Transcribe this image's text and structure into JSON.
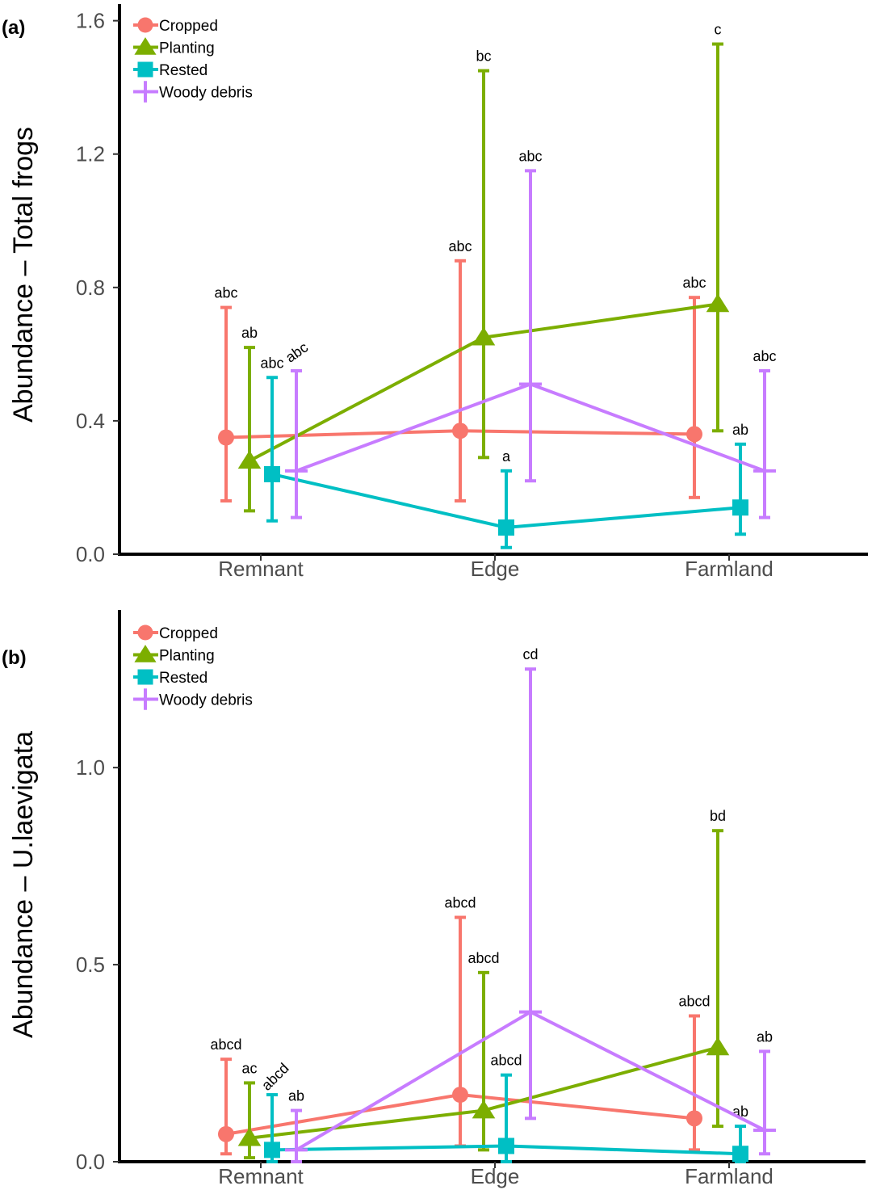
{
  "colors": {
    "Cropped": "#F8766D",
    "Planting": "#7CAE00",
    "Rested": "#00BFC4",
    "Woody debris": "#C77CFF",
    "axis": "#000000",
    "tick": "#4d4d4d"
  },
  "chart_data": [
    {
      "type": "line",
      "panel": "(a)",
      "ylabel": "Abundance – Total frogs",
      "xlabel": "",
      "categories": [
        "Remnant",
        "Edge",
        "Farmland"
      ],
      "ylim": [
        0,
        1.65
      ],
      "yticks": [
        0.0,
        0.4,
        0.8,
        1.2,
        1.6
      ],
      "ytick_labels": [
        "0.0",
        "0.4",
        "0.8",
        "1.2",
        "1.6"
      ],
      "legend": [
        "Cropped",
        "Planting",
        "Rested",
        "Woody debris"
      ],
      "legend_position": "top-left",
      "series": [
        {
          "name": "Cropped",
          "marker": "circle",
          "values": [
            0.35,
            0.37,
            0.36
          ],
          "lower": [
            0.16,
            0.16,
            0.17
          ],
          "upper": [
            0.74,
            0.88,
            0.77
          ],
          "labels": [
            "abc",
            "abc",
            "abc"
          ]
        },
        {
          "name": "Planting",
          "marker": "triangle",
          "values": [
            0.28,
            0.65,
            0.75
          ],
          "lower": [
            0.13,
            0.29,
            0.37
          ],
          "upper": [
            0.62,
            1.45,
            1.53
          ],
          "labels": [
            "ab",
            "bc",
            "c"
          ]
        },
        {
          "name": "Rested",
          "marker": "square",
          "values": [
            0.24,
            0.08,
            0.14
          ],
          "lower": [
            0.1,
            0.02,
            0.06
          ],
          "upper": [
            0.53,
            0.25,
            0.33
          ],
          "labels": [
            "abc",
            "a",
            "ab"
          ]
        },
        {
          "name": "Woody debris",
          "marker": "cross",
          "values": [
            0.25,
            0.51,
            0.25
          ],
          "lower": [
            0.11,
            0.22,
            0.11
          ],
          "upper": [
            0.55,
            1.15,
            0.55
          ],
          "labels": [
            "abc",
            "abc",
            "abc"
          ]
        }
      ]
    },
    {
      "type": "line",
      "panel": "(b)",
      "ylabel": "Abundance – U.laevigata",
      "xlabel": "",
      "categories": [
        "Remnant",
        "Edge",
        "Farmland"
      ],
      "ylim": [
        0,
        1.4
      ],
      "yticks": [
        0.0,
        0.5,
        1.0
      ],
      "ytick_labels": [
        "0.0",
        "0.5",
        "1.0"
      ],
      "legend": [
        "Cropped",
        "Planting",
        "Rested",
        "Woody debris"
      ],
      "legend_position": "top-left",
      "series": [
        {
          "name": "Cropped",
          "marker": "circle",
          "values": [
            0.07,
            0.17,
            0.11
          ],
          "lower": [
            0.02,
            0.04,
            0.03
          ],
          "upper": [
            0.26,
            0.62,
            0.37
          ],
          "labels": [
            "abcd",
            "abcd",
            "abcd"
          ]
        },
        {
          "name": "Planting",
          "marker": "triangle",
          "values": [
            0.06,
            0.13,
            0.29
          ],
          "lower": [
            0.01,
            0.03,
            0.09
          ],
          "upper": [
            0.2,
            0.48,
            0.84
          ],
          "labels": [
            "ac",
            "abcd",
            "bd"
          ]
        },
        {
          "name": "Rested",
          "marker": "square",
          "values": [
            0.03,
            0.04,
            0.02
          ],
          "lower": [
            0.0,
            0.0,
            0.0
          ],
          "upper": [
            0.17,
            0.22,
            0.09
          ],
          "labels": [
            "abcd",
            "abcd",
            "ab"
          ]
        },
        {
          "name": "Woody debris",
          "marker": "cross",
          "values": [
            0.03,
            0.38,
            0.08
          ],
          "lower": [
            0.0,
            0.11,
            0.02
          ],
          "upper": [
            0.13,
            1.25,
            0.28
          ],
          "labels": [
            "ab",
            "cd",
            "ab"
          ]
        }
      ]
    }
  ]
}
